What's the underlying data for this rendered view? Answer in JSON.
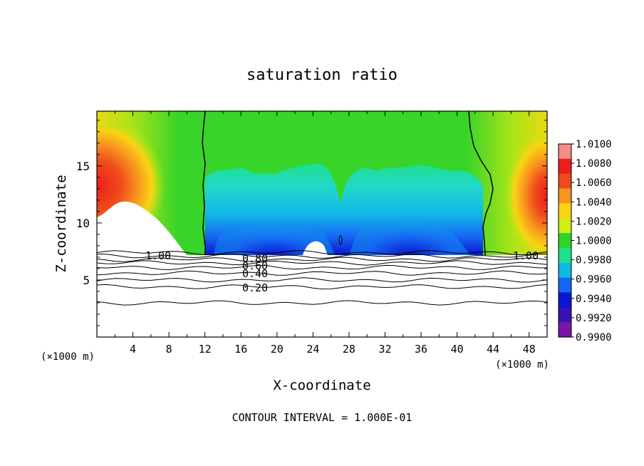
{
  "chart_data": {
    "type": "heatmap",
    "title": "saturation ratio",
    "xlabel": "X-coordinate",
    "ylabel": "Z-coordinate",
    "x_unit_left": "(×1000 m)",
    "x_unit_right": "(×1000 m)",
    "xlim": [
      0,
      50
    ],
    "ylim": [
      0,
      19.8
    ],
    "x_ticks": [
      "4",
      "8",
      "12",
      "16",
      "20",
      "24",
      "28",
      "32",
      "36",
      "40",
      "44",
      "48"
    ],
    "y_ticks": [
      "5",
      "10",
      "15"
    ],
    "footer": "CONTOUR INTERVAL = 1.000E-01",
    "colorbar": {
      "labels": [
        "1.0100",
        "1.0080",
        "1.0060",
        "1.0040",
        "1.0020",
        "1.0000",
        "0.9980",
        "0.9960",
        "0.9940",
        "0.9920",
        "0.9900"
      ],
      "colors": [
        "#f78a8a",
        "#ee1d1d",
        "#f04a1c",
        "#f7951e",
        "#f8d414",
        "#d0ee10",
        "#2ed42c",
        "#1ee08a",
        "#12b8e8",
        "#1566f2",
        "#0a16d0",
        "#3a12b4",
        "#7a16a6"
      ]
    },
    "contour_labels": [
      "1.00",
      "0.80",
      "0.60",
      "0.40",
      "0.20",
      "1.00"
    ],
    "contour_levels_z": [
      7.4,
      7.1,
      6.8,
      6.5,
      6.1,
      5.6,
      5.0,
      4.4,
      3.0
    ]
  }
}
